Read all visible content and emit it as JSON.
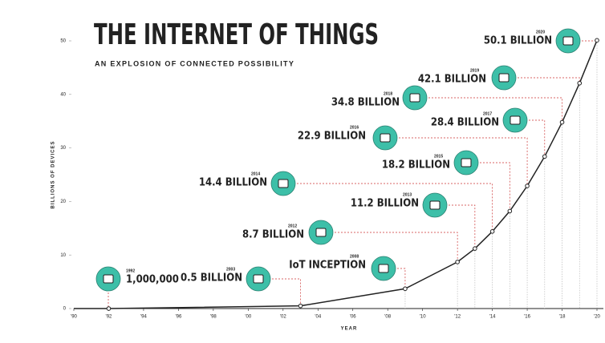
{
  "chart_data": {
    "type": "line",
    "title": "THE INTERNET OF THINGS",
    "subtitle": "AN EXPLOSION OF CONNECTED POSSIBILITY",
    "y_label": "BILLIONS OF DEVICES",
    "x_label": "YEAR",
    "x": [
      1990,
      1992,
      2003,
      2009,
      2012,
      2013,
      2014,
      2015,
      2016,
      2017,
      2018,
      2019,
      2020
    ],
    "series": [
      {
        "color": "#222222",
        "values": [
          0,
          0.001,
          0.5,
          3.7,
          8.7,
          11.2,
          14.4,
          18.2,
          22.9,
          28.4,
          34.8,
          42.1,
          50.1
        ]
      }
    ],
    "xlim": [
      1990,
      2020
    ],
    "xticks": [
      {
        "value": 1990,
        "label": "'90"
      },
      {
        "value": 1992,
        "label": "'92"
      },
      {
        "value": 1994,
        "label": "'94"
      },
      {
        "value": 1996,
        "label": "'96"
      },
      {
        "value": 1998,
        "label": "'98"
      },
      {
        "value": 2000,
        "label": "'00"
      },
      {
        "value": 2002,
        "label": "'02"
      },
      {
        "value": 2004,
        "label": "'04"
      },
      {
        "value": 2006,
        "label": "'06"
      },
      {
        "value": 2008,
        "label": "'08"
      },
      {
        "value": 2010,
        "label": "'10"
      },
      {
        "value": 2012,
        "label": "'12"
      },
      {
        "value": 2014,
        "label": "'14"
      },
      {
        "value": 2016,
        "label": "'16"
      },
      {
        "value": 2018,
        "label": "'18"
      },
      {
        "value": 2020,
        "label": "'20"
      }
    ],
    "ylim": [
      0,
      50
    ],
    "yticks": [
      0,
      10,
      20,
      30,
      40,
      50
    ],
    "annotation_color": "#3dbfa8",
    "annotations": [
      {
        "year": "1992",
        "label": "1,000,000"
      },
      {
        "year": "2003",
        "label": "0.5 BILLION"
      },
      {
        "year": "2008",
        "label": "IoT INCEPTION"
      },
      {
        "year": "2012",
        "label": "8.7 BILLION"
      },
      {
        "year": "2013",
        "label": "11.2 BILLION"
      },
      {
        "year": "2014",
        "label": "14.4 BILLION"
      },
      {
        "year": "2015",
        "label": "18.2 BILLION"
      },
      {
        "year": "2016",
        "label": "22.9 BILLION"
      },
      {
        "year": "2017",
        "label": "28.4 BILLION"
      },
      {
        "year": "2018",
        "label": "34.8 BILLION"
      },
      {
        "year": "2019",
        "label": "42.1 BILLION"
      },
      {
        "year": "2020",
        "label": "50.1 BILLION"
      }
    ]
  }
}
